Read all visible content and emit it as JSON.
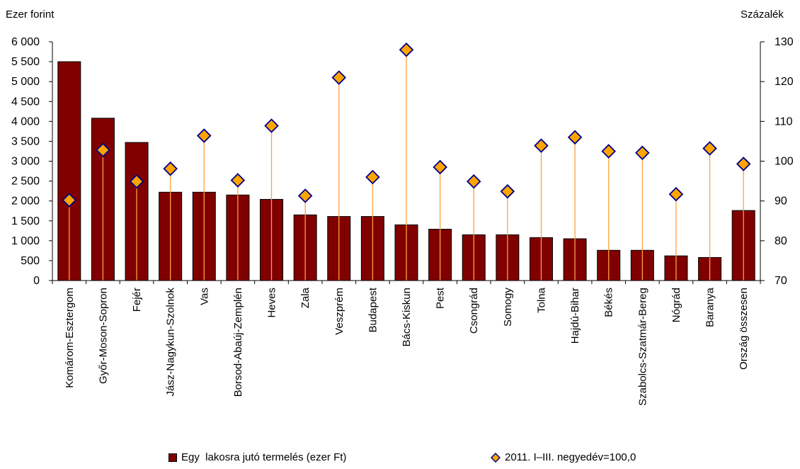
{
  "chart_data": {
    "type": "bar",
    "left_axis_title": "Ezer forint",
    "right_axis_title": "Százalék",
    "categories": [
      "Komárom-Esztergom",
      "Győr-Moson-Sopron",
      "Fejér",
      "Jász-Nagykun-Szolnok",
      "Vas",
      "Borsod-Abaúj-Zemplén",
      "Heves",
      "Zala",
      "Veszprém",
      "Budapest",
      "Bács-Kiskun",
      "Pest",
      "Csongrád",
      "Somogy",
      "Tolna",
      "Hajdú-Bihar",
      "Békés",
      "Szabolcs-Szatmár-Bereg",
      "Nógrád",
      "Baranya",
      "Ország összesen"
    ],
    "series": [
      {
        "name": "Egy  lakosra jutó termelés (ezer Ft)",
        "axis": "left",
        "render": "bar",
        "color": "#800000",
        "values": [
          5500,
          4080,
          3470,
          2220,
          2220,
          2150,
          2040,
          1650,
          1610,
          1610,
          1400,
          1290,
          1150,
          1150,
          1080,
          1050,
          760,
          760,
          620,
          580,
          1760
        ]
      },
      {
        "name": "2011. I–III. negyedév=100,0",
        "axis": "right",
        "render": "marker",
        "marker_fill": "#FFA500",
        "marker_stroke": "#00008B",
        "stem_color": "#FFA040",
        "values": [
          90.2,
          102.8,
          94.9,
          98.1,
          106.4,
          95.2,
          108.9,
          91.3,
          121.0,
          96.0,
          128.0,
          98.5,
          94.9,
          92.4,
          103.9,
          106.0,
          102.5,
          102.1,
          91.7,
          103.2,
          99.3
        ]
      }
    ],
    "y_left": {
      "min": 0,
      "max": 6000,
      "ticks": [
        "0",
        "500",
        "1 000",
        "1 500",
        "2 000",
        "2 500",
        "3 000",
        "3 500",
        "4 000",
        "4 500",
        "5 000",
        "5 500",
        "6 000"
      ]
    },
    "y_right": {
      "min": 70,
      "max": 130,
      "ticks": [
        "70",
        "80",
        "90",
        "100",
        "110",
        "120",
        "130"
      ]
    },
    "grid": false,
    "legend_position": "bottom"
  }
}
